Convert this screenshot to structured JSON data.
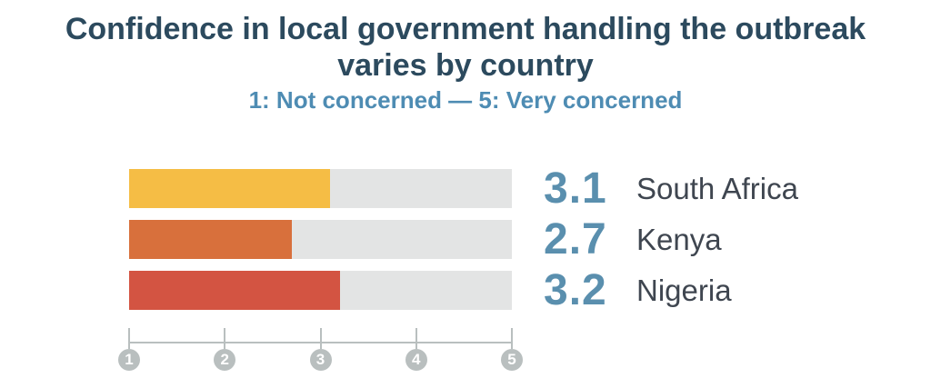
{
  "header": {
    "title_line1": "Confidence in local government handling the outbreak",
    "title_line2": "varies by country",
    "subtitle": "1: Not concerned — 5: Very concerned"
  },
  "colors": {
    "title": "#2c4a5e",
    "subtitle": "#4e8cb3",
    "value": "#5a8fae",
    "country": "#3f4650"
  },
  "chart_data": {
    "type": "bar",
    "orientation": "horizontal",
    "title": "Confidence in local government handling the outbreak varies by country",
    "subtitle": "1: Not concerned — 5: Very concerned",
    "categories": [
      "South Africa",
      "Kenya",
      "Nigeria"
    ],
    "values": [
      3.1,
      2.7,
      3.2
    ],
    "value_labels": [
      "3.1",
      "2.7",
      "3.2"
    ],
    "bar_colors": [
      "#f5bd45",
      "#d8703c",
      "#d35442"
    ],
    "track_color": "#e3e4e4",
    "axis_color": "#b9bfbf",
    "xlim": [
      1,
      5
    ],
    "x_ticks": [
      1,
      2,
      3,
      4,
      5
    ],
    "grid": false,
    "legend": "none"
  }
}
